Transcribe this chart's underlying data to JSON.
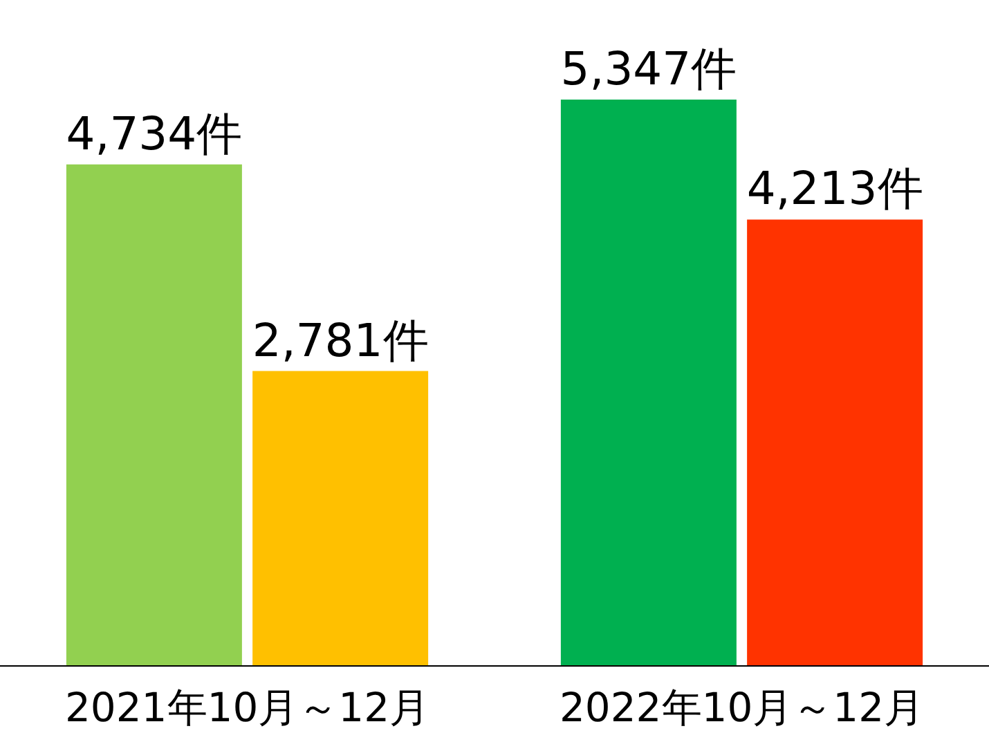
{
  "chart_data": {
    "type": "bar",
    "categories": [
      "2021年10月～12月",
      "2022年10月～12月"
    ],
    "series": [
      {
        "colors": [
          "#92d050",
          "#00b050"
        ],
        "values": [
          4734,
          5347
        ],
        "value_labels": [
          "4,734件",
          "5,347件"
        ]
      },
      {
        "colors": [
          "#ffc000",
          "#ff3300"
        ],
        "values": [
          2781,
          4213
        ],
        "value_labels": [
          "2,781件",
          "4,213件"
        ]
      }
    ]
  }
}
